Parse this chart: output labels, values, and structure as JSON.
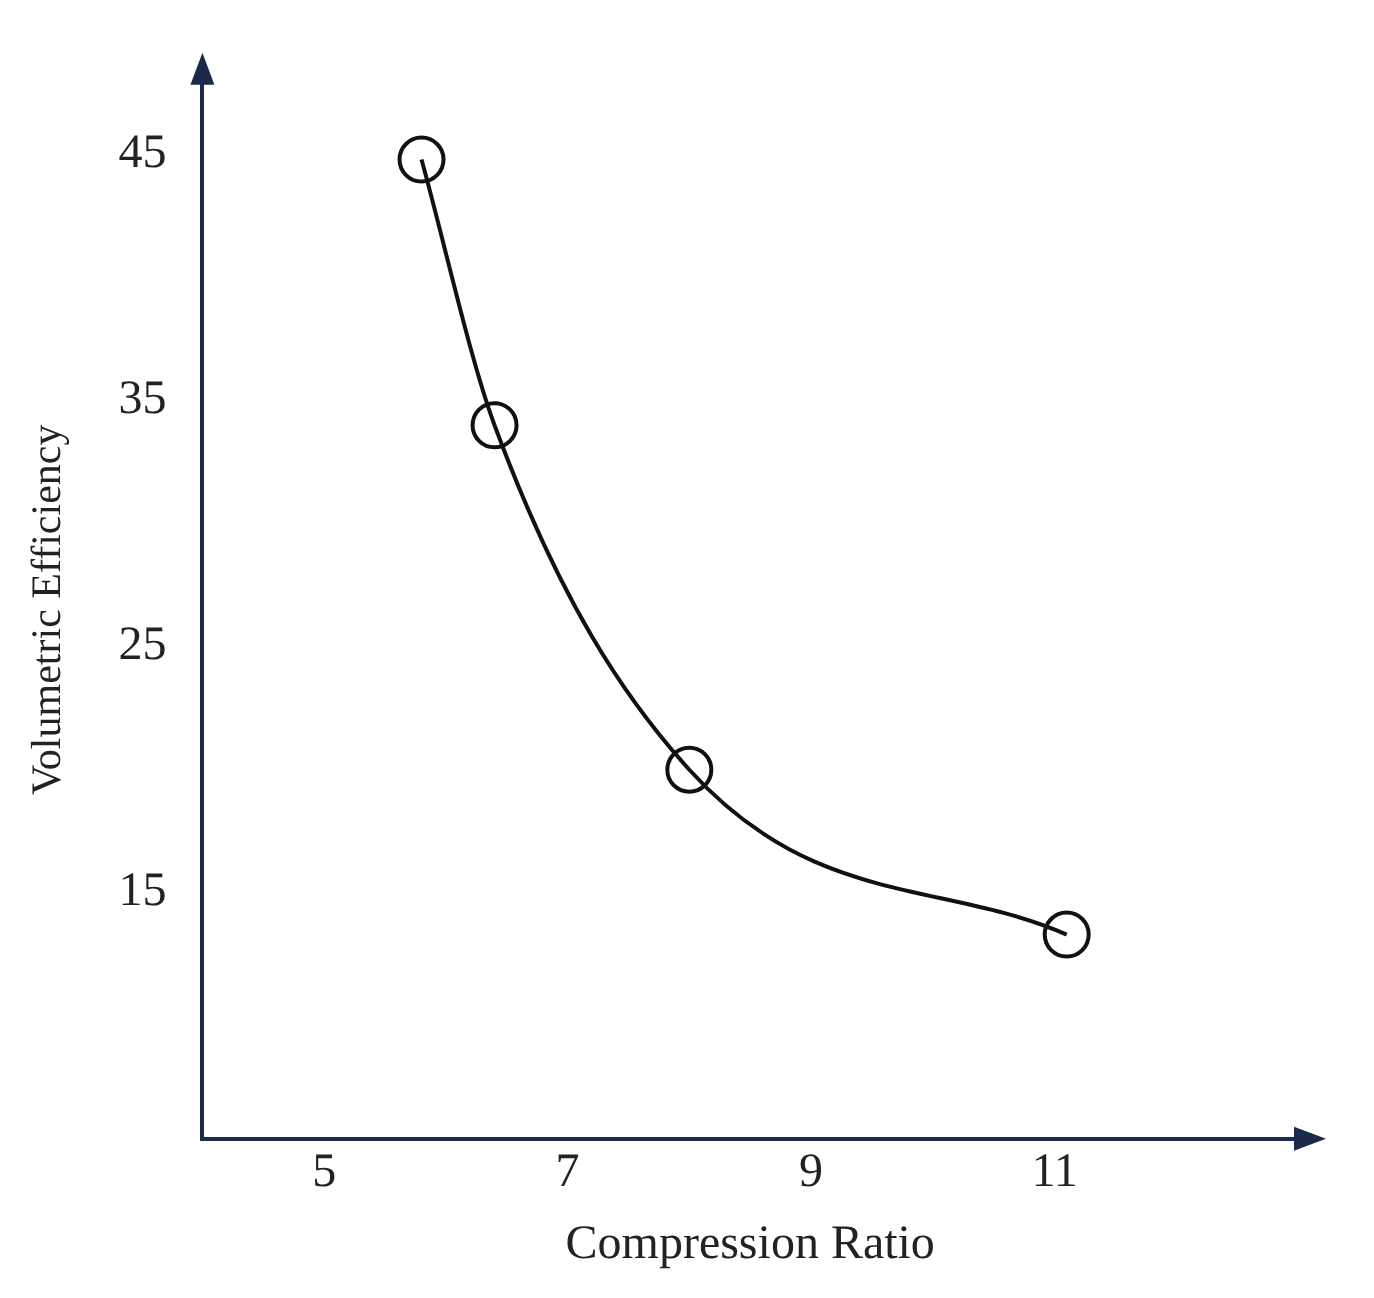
{
  "chart_data": {
    "type": "line",
    "xlabel": "Compression Ratio",
    "ylabel": "Volumetric Efficiency",
    "x": [
      5.8,
      6.4,
      8.0,
      11.1
    ],
    "series": [
      {
        "color": "#111111",
        "values": [
          44.8,
          34,
          20,
          13.3
        ]
      }
    ],
    "xlim": [
      4,
      13
    ],
    "ylim": [
      5,
      48
    ],
    "xticks": [
      5,
      7,
      9,
      11
    ],
    "yticks": [
      15,
      25,
      35,
      45
    ],
    "grid": false,
    "legend": false,
    "marker": "circle",
    "line_style": "solid"
  }
}
